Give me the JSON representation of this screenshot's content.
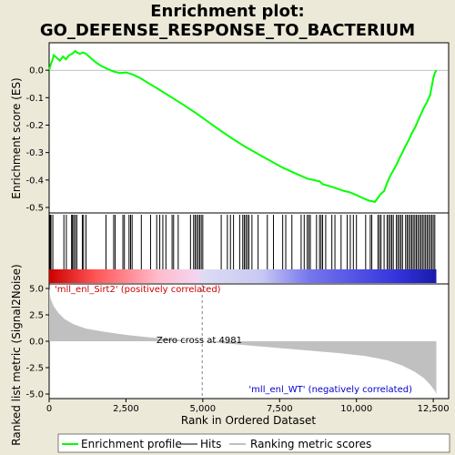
{
  "chart_data": {
    "type": "line",
    "title_line1": "Enrichment plot:",
    "title_line2": "GO_DEFENSE_RESPONSE_TO_BACTERIUM",
    "top_panel": {
      "ylabel": "Enrichment score (ES)",
      "ylim": [
        -0.52,
        0.1
      ],
      "yticks": [
        0.0,
        -0.1,
        -0.2,
        -0.3,
        -0.4,
        -0.5
      ],
      "ytick_labels": [
        "0.0",
        "-0.1",
        "-0.2",
        "-0.3",
        "-0.4",
        "-0.5"
      ],
      "line_color": "#00ff00",
      "series": [
        {
          "x": [
            0,
            50,
            100,
            150,
            250,
            350,
            450,
            550,
            650,
            750,
            850,
            900,
            1000,
            1100,
            1200,
            1300,
            1500,
            1700,
            1900,
            2100,
            2300,
            2500,
            2700,
            2900,
            3200,
            3600,
            4000,
            4400,
            4800,
            5200,
            5600,
            6000,
            6400,
            6800,
            7200,
            7600,
            8000,
            8400,
            8800,
            8900,
            9200,
            9600,
            9800,
            10000,
            10200,
            10400,
            10600,
            10700,
            10800,
            10900,
            11000,
            11100,
            11200,
            11300,
            11400,
            11500,
            11600,
            11700,
            11800,
            11900,
            12000,
            12100,
            12200,
            12300,
            12400,
            12450,
            12500,
            12550,
            12600
          ],
          "y": [
            0.0,
            0.02,
            0.035,
            0.055,
            0.045,
            0.035,
            0.05,
            0.04,
            0.055,
            0.06,
            0.07,
            0.065,
            0.06,
            0.065,
            0.06,
            0.05,
            0.03,
            0.015,
            0.005,
            -0.005,
            -0.01,
            -0.008,
            -0.015,
            -0.025,
            -0.045,
            -0.072,
            -0.1,
            -0.128,
            -0.158,
            -0.19,
            -0.222,
            -0.252,
            -0.28,
            -0.305,
            -0.33,
            -0.355,
            -0.375,
            -0.395,
            -0.405,
            -0.415,
            -0.425,
            -0.44,
            -0.445,
            -0.455,
            -0.465,
            -0.475,
            -0.48,
            -0.465,
            -0.45,
            -0.44,
            -0.41,
            -0.385,
            -0.365,
            -0.345,
            -0.32,
            -0.3,
            -0.275,
            -0.255,
            -0.23,
            -0.21,
            -0.185,
            -0.16,
            -0.135,
            -0.115,
            -0.09,
            -0.06,
            -0.03,
            -0.01,
            0.0
          ]
        }
      ]
    },
    "hits_panel": {
      "hit_ranks": [
        30,
        60,
        120,
        480,
        560,
        730,
        760,
        800,
        850,
        900,
        1080,
        1120,
        1200,
        1850,
        2100,
        2150,
        2400,
        2450,
        2600,
        2650,
        2700,
        3000,
        3300,
        3500,
        3600,
        3700,
        3800,
        4000,
        4050,
        4200,
        4600,
        4700,
        4750,
        4800,
        4850,
        4900,
        4950,
        5000,
        5600,
        5800,
        5900,
        6000,
        6200,
        6300,
        6350,
        6400,
        6450,
        6500,
        6600,
        6800,
        7100,
        7300,
        7600,
        7700,
        7900,
        8200,
        8300,
        8400,
        8450,
        8500,
        8700,
        8800,
        8850,
        8900,
        9000,
        9200,
        9300,
        9500,
        9700,
        9800,
        9900,
        10000,
        10300,
        10450,
        10500,
        10700,
        10750,
        10800,
        10900,
        11000,
        11050,
        11100,
        11150,
        11200,
        11300,
        11350,
        11400,
        11450,
        11500,
        11600,
        11650,
        11700,
        11750,
        11800,
        11850,
        11900,
        11950,
        12000,
        12050,
        12100,
        12150,
        12200,
        12250,
        12300,
        12350,
        12400,
        12450,
        12500,
        12550
      ]
    },
    "metric_panel": {
      "ylabel": "Ranked list metric (Signal2Noise)",
      "ylim": [
        -5.0,
        5.0
      ],
      "yticks": [
        5.0,
        2.5,
        0.0,
        -2.5,
        -5.0
      ],
      "ytick_labels": [
        "5.0",
        "2.5",
        "0.0",
        "-2.5",
        "-5.0"
      ],
      "x": [
        0,
        50,
        150,
        300,
        500,
        800,
        1200,
        1800,
        2500,
        3300,
        4000,
        4600,
        4981,
        5500,
        6500,
        7500,
        8500,
        9500,
        10300,
        11000,
        11500,
        11900,
        12200,
        12400,
        12550,
        12600
      ],
      "y": [
        5.0,
        4.0,
        3.3,
        2.7,
        2.1,
        1.6,
        1.2,
        0.9,
        0.6,
        0.35,
        0.18,
        0.06,
        0.0,
        -0.15,
        -0.4,
        -0.65,
        -0.9,
        -1.15,
        -1.4,
        -1.8,
        -2.3,
        -2.9,
        -3.5,
        -4.1,
        -4.7,
        -5.0
      ],
      "fill_color": "#c0c0c0",
      "zero_cross_label": "Zero cross at 4981",
      "zero_cross": 4981,
      "positive_label": "'mll_enl_Sirt2' (positively correlated)",
      "negative_label": "'mll_enl_WT' (negatively correlated)",
      "positive_color": "#cc0000",
      "negative_color": "#0000cc"
    },
    "xlabel": "Rank in Ordered Dataset",
    "xlim": [
      0,
      13000
    ],
    "xticks": [
      0,
      2500,
      5000,
      7500,
      10000,
      12500
    ],
    "xtick_labels": [
      "0",
      "2,500",
      "5,000",
      "7,500",
      "10,000",
      "12,500"
    ],
    "legend": [
      {
        "label": "Enrichment profile",
        "color": "#00ff00"
      },
      {
        "label": "Hits",
        "color": "#000000"
      },
      {
        "label": "Ranking metric scores",
        "color": "#c0c0c0"
      }
    ],
    "legend_position": "bottom"
  }
}
